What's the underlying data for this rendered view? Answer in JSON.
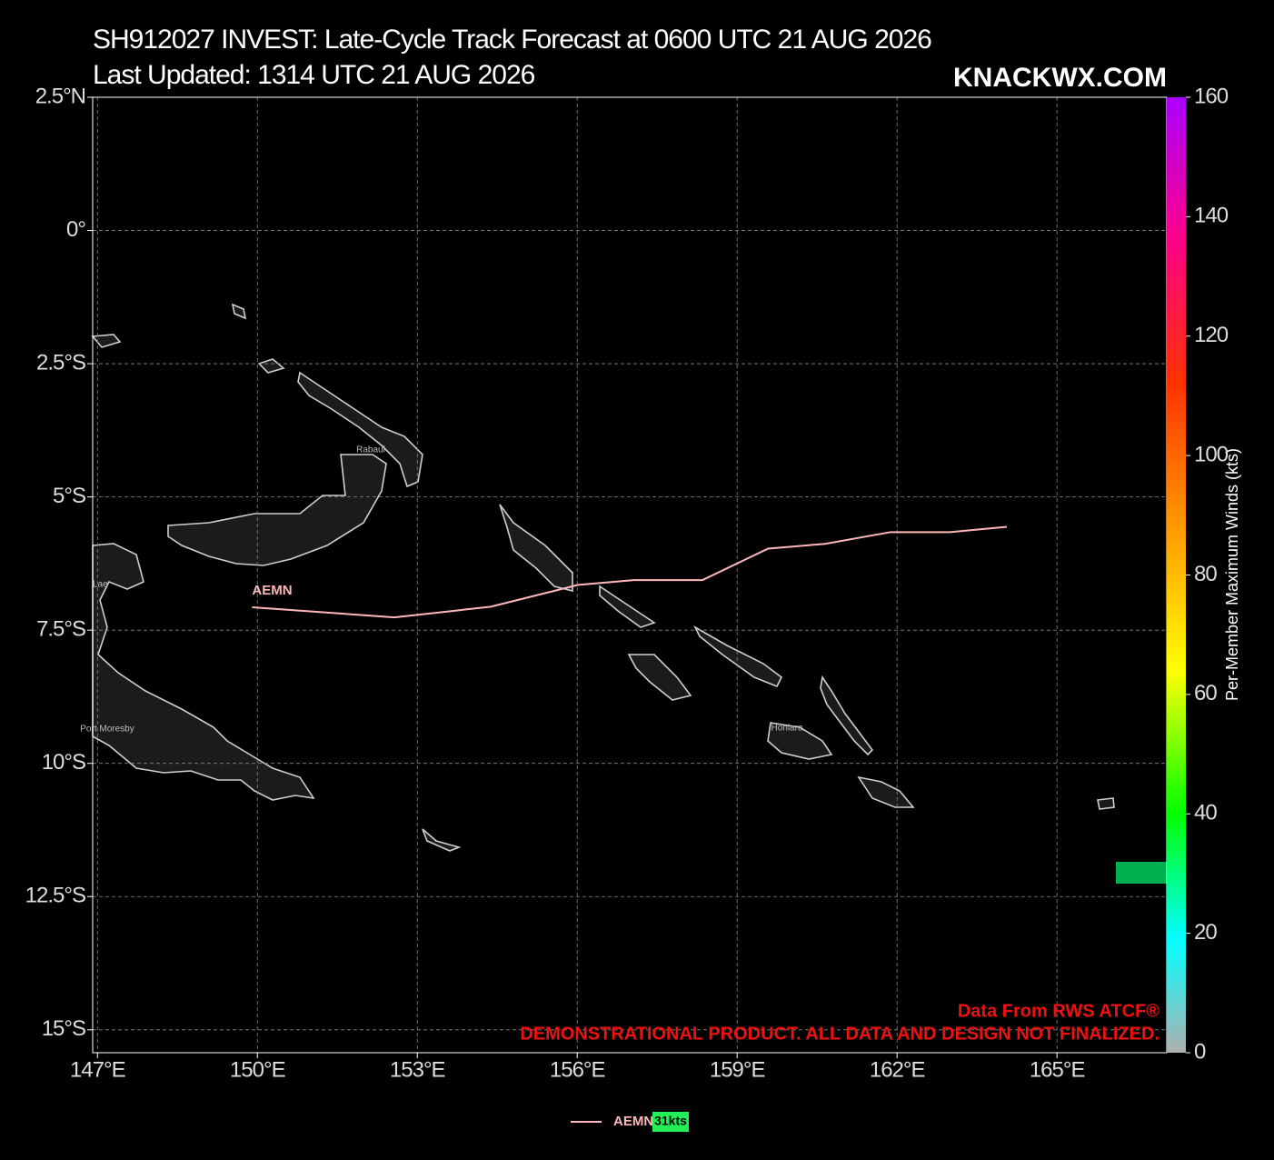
{
  "header": {
    "title": "SH912027 INVEST: Late-Cycle Track Forecast at 0600 UTC 21 AUG 2026",
    "subtitle": "Last Updated: 1314 UTC 21 AUG 2026",
    "brand": "KNACKWX.COM"
  },
  "chart_data": {
    "type": "track",
    "xlim": [
      146.91,
      167.06
    ],
    "ylim": [
      -15.43,
      2.5
    ],
    "xticks": [
      {
        "value": 147,
        "label": "147°E"
      },
      {
        "value": 150,
        "label": "150°E"
      },
      {
        "value": 153,
        "label": "153°E"
      },
      {
        "value": 156,
        "label": "156°E"
      },
      {
        "value": 159,
        "label": "159°E"
      },
      {
        "value": 162,
        "label": "162°E"
      },
      {
        "value": 165,
        "label": "165°E"
      }
    ],
    "yticks": [
      {
        "value": 2.5,
        "label": "2.5°N"
      },
      {
        "value": 0,
        "label": "0°"
      },
      {
        "value": -2.5,
        "label": "2.5°S"
      },
      {
        "value": -5,
        "label": "5°S"
      },
      {
        "value": -7.5,
        "label": "7.5°S"
      },
      {
        "value": -10,
        "label": "10°S"
      },
      {
        "value": -12.5,
        "label": "12.5°S"
      },
      {
        "value": -15,
        "label": "15°S"
      }
    ],
    "grid": true,
    "series": [
      {
        "name": "AEMN",
        "legend_label": "AEMN:",
        "color": "#ffb8b8",
        "x": [
          149.9,
          152.57,
          154.38,
          156.02,
          157.06,
          158.35,
          159.58,
          160.65,
          161.88,
          162.99,
          164.06
        ],
        "y": [
          -7.07,
          -7.26,
          -7.06,
          -6.65,
          -6.56,
          -6.56,
          -5.97,
          -5.88,
          -5.66,
          -5.66,
          -5.56
        ],
        "max_wind": 31,
        "max_wind_label": "31kts"
      }
    ],
    "colorbar": {
      "label": "Per-Member Maximum Winds (kts)",
      "lim": [
        0,
        160
      ],
      "ticks": [
        0,
        20,
        40,
        60,
        80,
        100,
        120,
        140,
        160
      ]
    },
    "places": [
      "Rabaul",
      "Lae",
      "Port Moresby",
      "Honiara"
    ],
    "credits": [
      "Data From RWS ATCF®",
      "DEMONSTRATIONAL PRODUCT. ALL DATA AND DESIGN NOT FINALIZED."
    ]
  }
}
